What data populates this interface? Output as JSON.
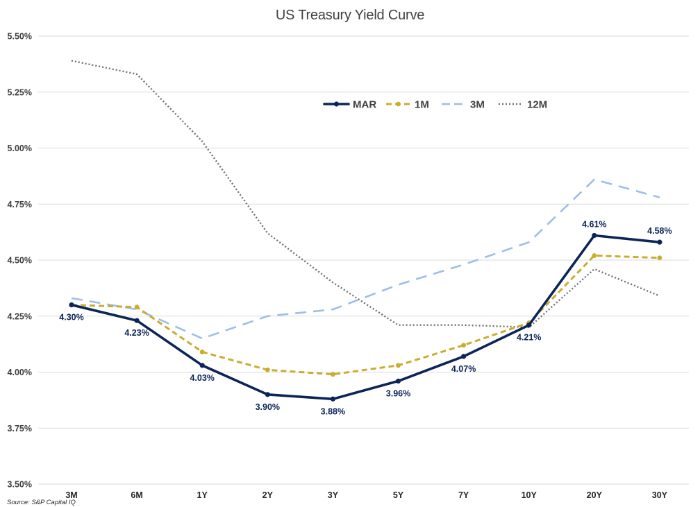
{
  "chart_data": {
    "type": "line",
    "title": "US Treasury Yield Curve",
    "xlabel": "",
    "ylabel": "",
    "categories": [
      "3M",
      "6M",
      "1Y",
      "2Y",
      "3Y",
      "5Y",
      "7Y",
      "10Y",
      "20Y",
      "30Y"
    ],
    "ylim": [
      3.5,
      5.5
    ],
    "yticks": [
      3.5,
      3.75,
      4.0,
      4.25,
      4.5,
      4.75,
      5.0,
      5.25,
      5.5
    ],
    "ytick_labels": [
      "3.50%",
      "3.75%",
      "4.00%",
      "4.25%",
      "4.50%",
      "4.75%",
      "5.00%",
      "5.25%",
      "5.50%"
    ],
    "grid": true,
    "legend_position": "top-center",
    "series": [
      {
        "name": "MAR",
        "color": "#0b2558",
        "style": "solid-markers",
        "values": [
          4.3,
          4.23,
          4.03,
          3.9,
          3.88,
          3.96,
          4.07,
          4.21,
          4.61,
          4.58
        ],
        "labels": [
          "4.30%",
          "4.23%",
          "4.03%",
          "3.90%",
          "3.88%",
          "3.96%",
          "4.07%",
          "4.21%",
          "4.61%",
          "4.58%"
        ]
      },
      {
        "name": "1M",
        "color": "#c9ad2e",
        "style": "dashed-markers",
        "values": [
          4.3,
          4.29,
          4.09,
          4.01,
          3.99,
          4.03,
          4.12,
          4.22,
          4.52,
          4.51
        ]
      },
      {
        "name": "3M",
        "color": "#9ebdea",
        "style": "long-dash",
        "values": [
          4.33,
          4.28,
          4.15,
          4.25,
          4.28,
          4.39,
          4.48,
          4.58,
          4.86,
          4.78
        ]
      },
      {
        "name": "12M",
        "color": "#6e6e6e",
        "style": "dotted",
        "values": [
          5.39,
          5.33,
          5.03,
          4.62,
          4.4,
          4.21,
          4.21,
          4.2,
          4.46,
          4.34
        ]
      }
    ]
  },
  "source": "Source: S&P Capital IQ"
}
